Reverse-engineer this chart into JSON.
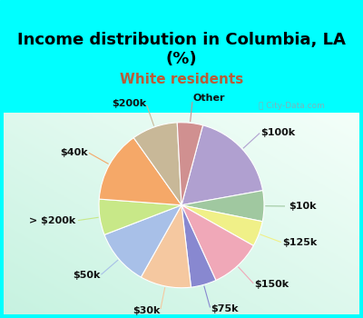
{
  "title_line1": "Income distribution in Columbia, LA",
  "title_line2": "(%)",
  "subtitle": "White residents",
  "title_color": "#000000",
  "subtitle_color": "#b85c38",
  "watermark": "ⓘ City-Data.com",
  "labels": [
    "$100k",
    "$10k",
    "$125k",
    "$150k",
    "$75k",
    "$30k",
    "$50k",
    "> $200k",
    "$40k",
    "$200k",
    "Other"
  ],
  "values": [
    18,
    6,
    5,
    10,
    5,
    10,
    11,
    7,
    14,
    9,
    5
  ],
  "colors": [
    "#b0a0d0",
    "#a0c8a0",
    "#f0f088",
    "#f0a8b8",
    "#8888d0",
    "#f5c8a0",
    "#a8c0e8",
    "#c8e888",
    "#f5a868",
    "#c8b898",
    "#d09090"
  ],
  "startangle": 75,
  "label_fontsize": 8,
  "figsize": [
    4.0,
    3.5
  ],
  "dpi": 100,
  "bg_cyan": "#00ffff",
  "bg_chart_topleft": "#c8ede0",
  "bg_chart_bottomright": "#e8f8f0"
}
